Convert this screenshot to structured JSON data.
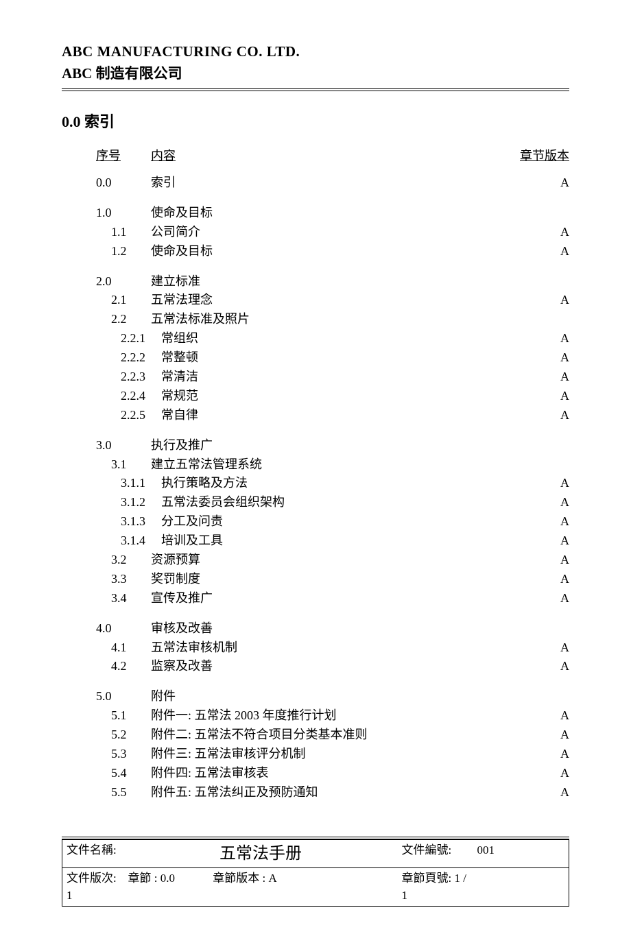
{
  "header": {
    "en": "ABC MANUFACTURING CO. LTD.",
    "zh": "ABC 制造有限公司"
  },
  "section_title": "0.0  索引",
  "columns": {
    "num": "序号",
    "content": "内容",
    "version": "章节版本"
  },
  "rows": [
    {
      "type": "row",
      "level": 0,
      "num": "0.0",
      "content": "索引",
      "version": "A"
    },
    {
      "type": "gap"
    },
    {
      "type": "row",
      "level": 0,
      "num": "1.0",
      "content": "使命及目标",
      "version": ""
    },
    {
      "type": "row",
      "level": 1,
      "num": "1.1",
      "content": "公司简介",
      "version": "A"
    },
    {
      "type": "row",
      "level": 1,
      "num": "1.2",
      "content": "使命及目标",
      "version": "A"
    },
    {
      "type": "gap"
    },
    {
      "type": "row",
      "level": 0,
      "num": "2.0",
      "content": "建立标准",
      "version": ""
    },
    {
      "type": "row",
      "level": 1,
      "num": "2.1",
      "content": "五常法理念",
      "version": "A"
    },
    {
      "type": "row",
      "level": 1,
      "num": "2.2",
      "content": "五常法标准及照片",
      "version": ""
    },
    {
      "type": "row",
      "level": 2,
      "num": "2.2.1",
      "content": "常组织",
      "version": "A"
    },
    {
      "type": "row",
      "level": 2,
      "num": "2.2.2",
      "content": "常整顿",
      "version": "A"
    },
    {
      "type": "row",
      "level": 2,
      "num": "2.2.3",
      "content": "常清洁",
      "version": "A"
    },
    {
      "type": "row",
      "level": 2,
      "num": "2.2.4",
      "content": "常规范",
      "version": "A"
    },
    {
      "type": "row",
      "level": 2,
      "num": "2.2.5",
      "content": "常自律",
      "version": "A"
    },
    {
      "type": "gap"
    },
    {
      "type": "row",
      "level": 0,
      "num": "3.0",
      "content": "执行及推广",
      "version": ""
    },
    {
      "type": "row",
      "level": 1,
      "num": "3.1",
      "content": "建立五常法管理系统",
      "version": ""
    },
    {
      "type": "row",
      "level": 2,
      "num": "3.1.1",
      "content": "执行策略及方法",
      "version": "A"
    },
    {
      "type": "row",
      "level": 2,
      "num": "3.1.2",
      "content": "五常法委员会组织架构",
      "version": "A"
    },
    {
      "type": "row",
      "level": 2,
      "num": "3.1.3",
      "content": "分工及问责",
      "version": "A"
    },
    {
      "type": "row",
      "level": 2,
      "num": "3.1.4",
      "content": "培训及工具",
      "version": "A"
    },
    {
      "type": "row",
      "level": 1,
      "num": "3.2",
      "content": "资源预算",
      "version": "A"
    },
    {
      "type": "row",
      "level": 1,
      "num": "3.3",
      "content": "奖罚制度",
      "version": "A"
    },
    {
      "type": "row",
      "level": 1,
      "num": "3.4",
      "content": "宣传及推广",
      "version": "A"
    },
    {
      "type": "gap"
    },
    {
      "type": "row",
      "level": 0,
      "num": "4.0",
      "content": "审核及改善",
      "version": ""
    },
    {
      "type": "row",
      "level": 1,
      "num": "4.1",
      "content": "五常法审核机制",
      "version": "A"
    },
    {
      "type": "row",
      "level": 1,
      "num": "4.2",
      "content": "监察及改善",
      "version": "A"
    },
    {
      "type": "gap"
    },
    {
      "type": "row",
      "level": 0,
      "num": "5.0",
      "content": "附件",
      "version": ""
    },
    {
      "type": "row",
      "level": 1,
      "num": "5.1",
      "content": "附件一:  五常法 2003 年度推行计划",
      "version": "A"
    },
    {
      "type": "row",
      "level": 1,
      "num": "5.2",
      "content": "附件二:  五常法不符合项目分类基本准则",
      "version": "A"
    },
    {
      "type": "row",
      "level": 1,
      "num": "5.3",
      "content": "附件三:  五常法审核评分机制",
      "version": "A"
    },
    {
      "type": "row",
      "level": 1,
      "num": "5.4",
      "content": "附件四:  五常法审核表",
      "version": "A"
    },
    {
      "type": "row",
      "level": 1,
      "num": "5.5",
      "content": "附件五:  五常法纠正及预防通知",
      "version": "A"
    }
  ],
  "footer": {
    "doc_name_label": "文件名稱:",
    "doc_title": "五常法手册",
    "doc_no_label": "文件編號:",
    "doc_no": "001",
    "doc_rev_label": "文件版次:",
    "doc_rev": "1",
    "chapter_label": "章節 :",
    "chapter": "0.0",
    "chapter_ver_label": "章節版本 :",
    "chapter_ver": "A",
    "chapter_page_label": "章節頁號:",
    "chapter_page": "1 / 1"
  }
}
